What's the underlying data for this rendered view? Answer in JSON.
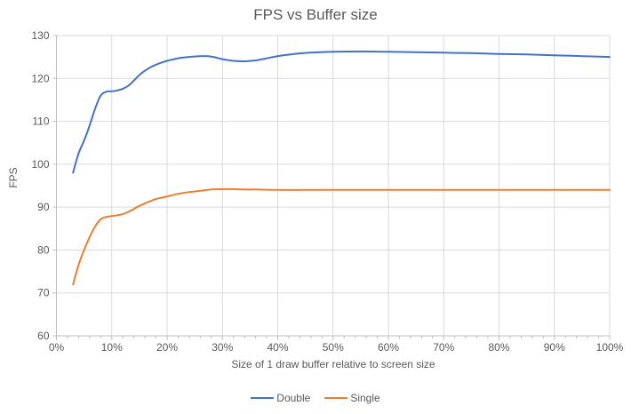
{
  "chart_title": "FPS vs Buffer size",
  "chart_data": {
    "type": "line",
    "title": "FPS vs Buffer size",
    "xlabel": "Size of 1 draw buffer relative to screen size",
    "ylabel": "FPS",
    "xlim": [
      0,
      100
    ],
    "ylim": [
      60,
      130
    ],
    "grid": true,
    "legend_position": "bottom",
    "x_minor_tick_unit": 2,
    "x_ticks": [
      {
        "value": 0,
        "label": "0%"
      },
      {
        "value": 10,
        "label": "10%"
      },
      {
        "value": 20,
        "label": "20%"
      },
      {
        "value": 30,
        "label": "30%"
      },
      {
        "value": 40,
        "label": "40%"
      },
      {
        "value": 50,
        "label": "50%"
      },
      {
        "value": 60,
        "label": "60%"
      },
      {
        "value": 70,
        "label": "70%"
      },
      {
        "value": 80,
        "label": "80%"
      },
      {
        "value": 90,
        "label": "90%"
      },
      {
        "value": 100,
        "label": "100%"
      }
    ],
    "y_ticks": [
      {
        "value": 60,
        "label": "60"
      },
      {
        "value": 70,
        "label": "70"
      },
      {
        "value": 80,
        "label": "80"
      },
      {
        "value": 90,
        "label": "90"
      },
      {
        "value": 100,
        "label": "100"
      },
      {
        "value": 110,
        "label": "110"
      },
      {
        "value": 120,
        "label": "120"
      },
      {
        "value": 130,
        "label": "130"
      }
    ],
    "series": [
      {
        "name": "Double",
        "color": "#4472C4",
        "points": [
          [
            3,
            98
          ],
          [
            4,
            102.5
          ],
          [
            5,
            105.5
          ],
          [
            6,
            109
          ],
          [
            7,
            113
          ],
          [
            8,
            116
          ],
          [
            9,
            116.9
          ],
          [
            10,
            117
          ],
          [
            11,
            117.2
          ],
          [
            12,
            117.6
          ],
          [
            13,
            118.3
          ],
          [
            14,
            119.5
          ],
          [
            15,
            120.8
          ],
          [
            16,
            121.8
          ],
          [
            17,
            122.6
          ],
          [
            18,
            123.2
          ],
          [
            19,
            123.7
          ],
          [
            20,
            124.1
          ],
          [
            22,
            124.7
          ],
          [
            24,
            125
          ],
          [
            26,
            125.2
          ],
          [
            28,
            125.1
          ],
          [
            30,
            124.5
          ],
          [
            32,
            124.1
          ],
          [
            34,
            124
          ],
          [
            36,
            124.2
          ],
          [
            38,
            124.7
          ],
          [
            40,
            125.2
          ],
          [
            43,
            125.7
          ],
          [
            46,
            126
          ],
          [
            50,
            126.2
          ],
          [
            55,
            126.3
          ],
          [
            60,
            126.2
          ],
          [
            65,
            126.1
          ],
          [
            70,
            126
          ],
          [
            75,
            125.9
          ],
          [
            80,
            125.7
          ],
          [
            85,
            125.6
          ],
          [
            90,
            125.4
          ],
          [
            95,
            125.2
          ],
          [
            100,
            125
          ]
        ]
      },
      {
        "name": "Single",
        "color": "#ED7D31",
        "points": [
          [
            3,
            72
          ],
          [
            4,
            76.5
          ],
          [
            5,
            80
          ],
          [
            6,
            83
          ],
          [
            7,
            85.5
          ],
          [
            8,
            87.2
          ],
          [
            9,
            87.7
          ],
          [
            10,
            87.9
          ],
          [
            11,
            88.1
          ],
          [
            12,
            88.4
          ],
          [
            13,
            88.9
          ],
          [
            14,
            89.6
          ],
          [
            15,
            90.3
          ],
          [
            16,
            90.9
          ],
          [
            17,
            91.4
          ],
          [
            18,
            91.9
          ],
          [
            19,
            92.2
          ],
          [
            20,
            92.5
          ],
          [
            22,
            93.1
          ],
          [
            24,
            93.5
          ],
          [
            26,
            93.8
          ],
          [
            28,
            94.1
          ],
          [
            30,
            94.2
          ],
          [
            32,
            94.2
          ],
          [
            34,
            94.1
          ],
          [
            36,
            94.1
          ],
          [
            40,
            94
          ],
          [
            45,
            94
          ],
          [
            50,
            94
          ],
          [
            55,
            94
          ],
          [
            60,
            94
          ],
          [
            65,
            94
          ],
          [
            70,
            94
          ],
          [
            75,
            94
          ],
          [
            80,
            94
          ],
          [
            85,
            94
          ],
          [
            90,
            94
          ],
          [
            95,
            94
          ],
          [
            100,
            94
          ]
        ]
      }
    ]
  },
  "colors": {
    "gridline": "#D9D9D9",
    "axis_line": "#BFBFBF",
    "text": "#595959",
    "background": "#FFFFFF"
  }
}
